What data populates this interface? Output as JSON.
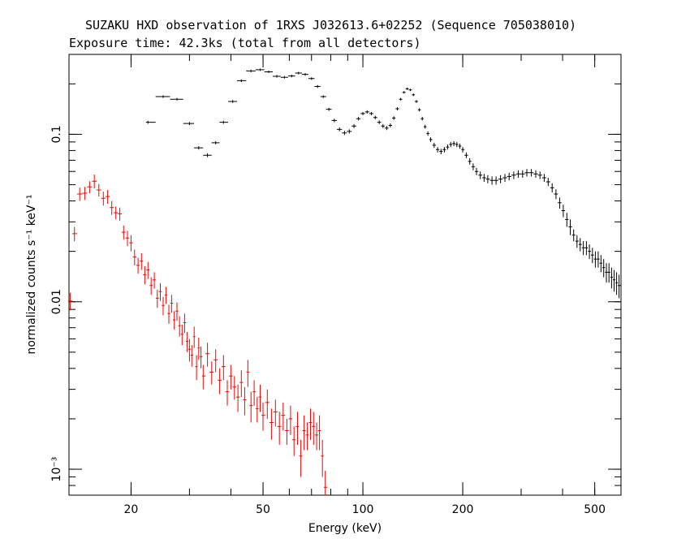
{
  "title": "SUZAKU HXD observation of 1RXS J032613.6+02252 (Sequence 705038010)",
  "subtitle": "Exposure time: 42.3ks (total from all detectors)",
  "chart_data": {
    "type": "scatter",
    "xlabel": "Energy (keV)",
    "ylabel": "normalized counts s⁻¹ keV⁻¹",
    "xscale": "log",
    "yscale": "log",
    "xlim": [
      13.0,
      600
    ],
    "ylim": [
      0.0007,
      0.3
    ],
    "x_ticks": [
      {
        "value": 20,
        "label": "20"
      },
      {
        "value": 50,
        "label": "50"
      },
      {
        "value": 100,
        "label": "100"
      },
      {
        "value": 200,
        "label": "200"
      },
      {
        "value": 500,
        "label": "500"
      }
    ],
    "y_ticks": [
      {
        "value": 0.1,
        "label": "0.1"
      },
      {
        "value": 0.01,
        "label": "0.01"
      },
      {
        "value": 0.001,
        "label": "10⁻³"
      }
    ],
    "grid": false,
    "legend": "none",
    "series": [
      {
        "color": "#ff0000",
        "points": [
          [
            13.1,
            0.0101,
            0.0012
          ],
          [
            13.5,
            0.0255,
            0.0025
          ],
          [
            14.0,
            0.044,
            0.004
          ],
          [
            14.5,
            0.0445,
            0.004
          ],
          [
            15.0,
            0.0485,
            0.004
          ],
          [
            15.5,
            0.0525,
            0.005
          ],
          [
            16.0,
            0.0465,
            0.004
          ],
          [
            16.5,
            0.0415,
            0.004
          ],
          [
            17.0,
            0.0425,
            0.004
          ],
          [
            17.5,
            0.0365,
            0.0035
          ],
          [
            18.0,
            0.034,
            0.003
          ],
          [
            18.5,
            0.0335,
            0.003
          ],
          [
            19.0,
            0.026,
            0.0025
          ],
          [
            19.5,
            0.024,
            0.0025
          ],
          [
            20.0,
            0.0225,
            0.0025
          ],
          [
            20.5,
            0.0185,
            0.002
          ],
          [
            21.0,
            0.0165,
            0.0018
          ],
          [
            21.5,
            0.0175,
            0.002
          ],
          [
            22.0,
            0.0145,
            0.0018
          ],
          [
            22.5,
            0.0155,
            0.0018
          ],
          [
            23.0,
            0.0125,
            0.0015
          ],
          [
            23.5,
            0.0135,
            0.0015
          ],
          [
            24.0,
            0.0105,
            0.0013
          ],
          [
            24.5,
            0.0115,
            0.0014
          ],
          [
            25.0,
            0.0095,
            0.0012
          ],
          [
            25.5,
            0.011,
            0.0013
          ],
          [
            26.0,
            0.0085,
            0.0011
          ],
          [
            26.5,
            0.0098,
            0.0012
          ],
          [
            27.0,
            0.0078,
            0.001
          ],
          [
            27.5,
            0.0088,
            0.0011
          ],
          [
            28.0,
            0.0072,
            0.001
          ],
          [
            28.5,
            0.0064,
            0.0009
          ],
          [
            29.0,
            0.0075,
            0.001
          ],
          [
            29.5,
            0.0058,
            0.0008
          ],
          [
            30.0,
            0.0052,
            0.0008
          ],
          [
            30.5,
            0.0048,
            0.0007
          ],
          [
            31.0,
            0.0062,
            0.0009
          ],
          [
            31.5,
            0.0041,
            0.0007
          ],
          [
            32.0,
            0.0053,
            0.0008
          ],
          [
            32.5,
            0.0047,
            0.0007
          ],
          [
            33.0,
            0.0036,
            0.0006
          ],
          [
            34.0,
            0.0049,
            0.0008
          ],
          [
            35.0,
            0.0038,
            0.0006
          ],
          [
            36.0,
            0.0045,
            0.0007
          ],
          [
            37.0,
            0.0034,
            0.0006
          ],
          [
            38.0,
            0.0041,
            0.0007
          ],
          [
            39.0,
            0.0029,
            0.0005
          ],
          [
            40.0,
            0.0036,
            0.0006
          ],
          [
            41.0,
            0.0031,
            0.0005
          ],
          [
            42.0,
            0.0027,
            0.0005
          ],
          [
            43.0,
            0.0033,
            0.0006
          ],
          [
            44.0,
            0.0026,
            0.0005
          ],
          [
            45.0,
            0.0038,
            0.0007
          ],
          [
            46.0,
            0.0024,
            0.0005
          ],
          [
            47.0,
            0.0029,
            0.0005
          ],
          [
            48.0,
            0.0023,
            0.0004
          ],
          [
            49.0,
            0.0027,
            0.0005
          ],
          [
            50.0,
            0.0021,
            0.0004
          ],
          [
            51.5,
            0.0025,
            0.0005
          ],
          [
            53.0,
            0.0019,
            0.0004
          ],
          [
            54.5,
            0.0022,
            0.0004
          ],
          [
            56.0,
            0.0018,
            0.0004
          ],
          [
            57.5,
            0.0021,
            0.0004
          ],
          [
            59.0,
            0.0017,
            0.0003
          ],
          [
            60.5,
            0.002,
            0.0004
          ],
          [
            62.0,
            0.0015,
            0.0003
          ],
          [
            63.5,
            0.0018,
            0.0004
          ],
          [
            65.0,
            0.0012,
            0.0003
          ],
          [
            66.5,
            0.0017,
            0.0004
          ],
          [
            68.0,
            0.0016,
            0.0003
          ],
          [
            69.5,
            0.0019,
            0.0004
          ],
          [
            71.0,
            0.0018,
            0.0004
          ],
          [
            72.5,
            0.0016,
            0.0003
          ],
          [
            74.0,
            0.0017,
            0.0004
          ],
          [
            75.5,
            0.0012,
            0.0003
          ],
          [
            77.0,
            0.00078,
            0.0002
          ]
        ]
      },
      {
        "color": "#000000",
        "points": [
          [
            22.5,
            0.118,
            0.0025
          ],
          [
            25.0,
            0.168,
            0.003
          ],
          [
            27.5,
            0.162,
            0.003
          ],
          [
            30.0,
            0.116,
            0.0025
          ],
          [
            32.0,
            0.083,
            0.002
          ],
          [
            34.0,
            0.075,
            0.002
          ],
          [
            36.0,
            0.089,
            0.002
          ],
          [
            38.0,
            0.118,
            0.0025
          ],
          [
            40.5,
            0.157,
            0.003
          ],
          [
            43.0,
            0.209,
            0.004
          ],
          [
            46.0,
            0.239,
            0.004
          ],
          [
            49.0,
            0.243,
            0.004
          ],
          [
            52.0,
            0.236,
            0.004
          ],
          [
            55.0,
            0.222,
            0.004
          ],
          [
            58.0,
            0.219,
            0.004
          ],
          [
            61.0,
            0.223,
            0.004
          ],
          [
            64.0,
            0.232,
            0.004
          ],
          [
            67.0,
            0.228,
            0.004
          ],
          [
            70.0,
            0.215,
            0.004
          ],
          [
            73.0,
            0.193,
            0.004
          ],
          [
            76.0,
            0.168,
            0.003
          ],
          [
            79.0,
            0.141,
            0.003
          ],
          [
            82.0,
            0.121,
            0.003
          ],
          [
            85.0,
            0.107,
            0.003
          ],
          [
            88.0,
            0.102,
            0.003
          ],
          [
            91.0,
            0.104,
            0.003
          ],
          [
            94.0,
            0.112,
            0.003
          ],
          [
            97.0,
            0.124,
            0.003
          ],
          [
            100.0,
            0.133,
            0.003
          ],
          [
            103.0,
            0.136,
            0.003
          ],
          [
            106.0,
            0.133,
            0.003
          ],
          [
            109.0,
            0.126,
            0.003
          ],
          [
            112.0,
            0.118,
            0.003
          ],
          [
            115.0,
            0.112,
            0.003
          ],
          [
            118.0,
            0.109,
            0.003
          ],
          [
            121.0,
            0.113,
            0.003
          ],
          [
            124.0,
            0.125,
            0.003
          ],
          [
            127.0,
            0.142,
            0.003
          ],
          [
            130.0,
            0.162,
            0.003
          ],
          [
            133.0,
            0.178,
            0.003
          ],
          [
            136.0,
            0.187,
            0.003
          ],
          [
            139.0,
            0.184,
            0.003
          ],
          [
            142.0,
            0.172,
            0.003
          ],
          [
            145.0,
            0.157,
            0.003
          ],
          [
            148.0,
            0.14,
            0.003
          ],
          [
            151.0,
            0.124,
            0.003
          ],
          [
            154.0,
            0.111,
            0.003
          ],
          [
            157.0,
            0.101,
            0.003
          ],
          [
            160.0,
            0.093,
            0.003
          ],
          [
            164.0,
            0.086,
            0.003
          ],
          [
            168.0,
            0.081,
            0.003
          ],
          [
            172.0,
            0.079,
            0.003
          ],
          [
            176.0,
            0.081,
            0.003
          ],
          [
            180.0,
            0.084,
            0.003
          ],
          [
            184.0,
            0.087,
            0.003
          ],
          [
            188.0,
            0.088,
            0.003
          ],
          [
            192.0,
            0.087,
            0.003
          ],
          [
            196.0,
            0.085,
            0.003
          ],
          [
            200.0,
            0.081,
            0.003
          ],
          [
            205.0,
            0.075,
            0.003
          ],
          [
            210.0,
            0.069,
            0.003
          ],
          [
            215.0,
            0.064,
            0.003
          ],
          [
            220.0,
            0.06,
            0.003
          ],
          [
            226.0,
            0.057,
            0.003
          ],
          [
            232.0,
            0.055,
            0.003
          ],
          [
            238.0,
            0.054,
            0.003
          ],
          [
            245.0,
            0.053,
            0.003
          ],
          [
            252.0,
            0.053,
            0.003
          ],
          [
            260.0,
            0.054,
            0.003
          ],
          [
            268.0,
            0.055,
            0.003
          ],
          [
            276.0,
            0.056,
            0.003
          ],
          [
            285.0,
            0.057,
            0.003
          ],
          [
            294.0,
            0.058,
            0.003
          ],
          [
            303.0,
            0.058,
            0.003
          ],
          [
            312.0,
            0.059,
            0.003
          ],
          [
            322.0,
            0.059,
            0.003
          ],
          [
            332.0,
            0.058,
            0.003
          ],
          [
            342.0,
            0.057,
            0.003
          ],
          [
            352.0,
            0.055,
            0.003
          ],
          [
            362.0,
            0.052,
            0.003
          ],
          [
            372.0,
            0.048,
            0.003
          ],
          [
            382.0,
            0.044,
            0.003
          ],
          [
            392.0,
            0.039,
            0.003
          ],
          [
            402.0,
            0.035,
            0.003
          ],
          [
            412.0,
            0.031,
            0.003
          ],
          [
            422.0,
            0.028,
            0.003
          ],
          [
            432.0,
            0.025,
            0.002
          ],
          [
            442.0,
            0.023,
            0.002
          ],
          [
            452.0,
            0.022,
            0.002
          ],
          [
            462.0,
            0.021,
            0.002
          ],
          [
            472.0,
            0.021,
            0.002
          ],
          [
            482.0,
            0.02,
            0.002
          ],
          [
            492.0,
            0.019,
            0.002
          ],
          [
            502.0,
            0.018,
            0.002
          ],
          [
            512.0,
            0.018,
            0.002
          ],
          [
            522.0,
            0.017,
            0.002
          ],
          [
            532.0,
            0.016,
            0.002
          ],
          [
            542.0,
            0.015,
            0.002
          ],
          [
            552.0,
            0.015,
            0.002
          ],
          [
            562.0,
            0.014,
            0.002
          ],
          [
            572.0,
            0.0135,
            0.002
          ],
          [
            582.0,
            0.013,
            0.002
          ],
          [
            592.0,
            0.0125,
            0.002
          ]
        ]
      }
    ]
  }
}
